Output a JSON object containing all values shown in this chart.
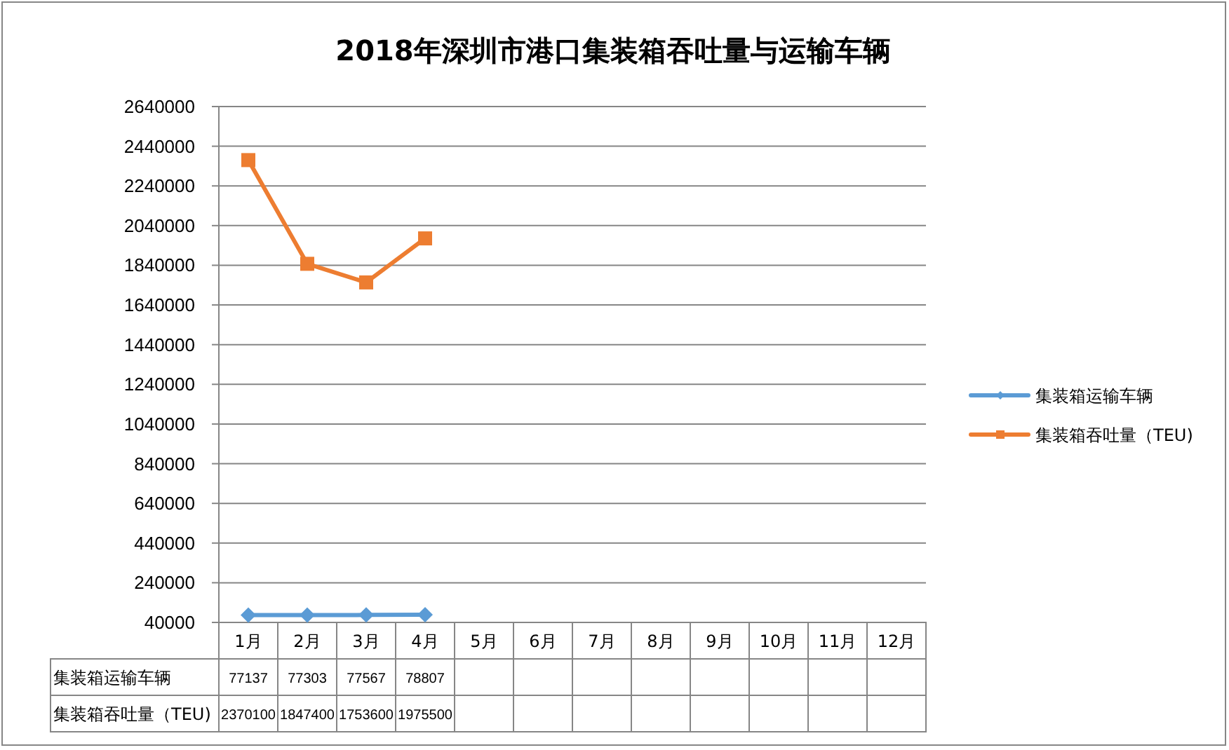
{
  "chart_data": {
    "type": "line",
    "title": "2018年深圳市港口集装箱吞吐量与运输车辆",
    "categories": [
      "1月",
      "2月",
      "3月",
      "4月",
      "5月",
      "6月",
      "7月",
      "8月",
      "9月",
      "10月",
      "11月",
      "12月"
    ],
    "series": [
      {
        "name": "集装箱运输车辆",
        "color": "#5b9bd5",
        "marker": "diamond",
        "values": [
          77137,
          77303,
          77567,
          78807,
          null,
          null,
          null,
          null,
          null,
          null,
          null,
          null
        ]
      },
      {
        "name": "集装箱吞吐量（TEU)",
        "color": "#ed7d31",
        "marker": "square",
        "values": [
          2370100,
          1847400,
          1753600,
          1975500,
          null,
          null,
          null,
          null,
          null,
          null,
          null,
          null
        ]
      }
    ],
    "ylim": [
      40000,
      2640000
    ],
    "yticks": [
      40000,
      240000,
      440000,
      640000,
      840000,
      1040000,
      1240000,
      1440000,
      1640000,
      1840000,
      2040000,
      2240000,
      2440000,
      2640000
    ],
    "grid": "y",
    "legend": "right",
    "data_labels": true
  }
}
